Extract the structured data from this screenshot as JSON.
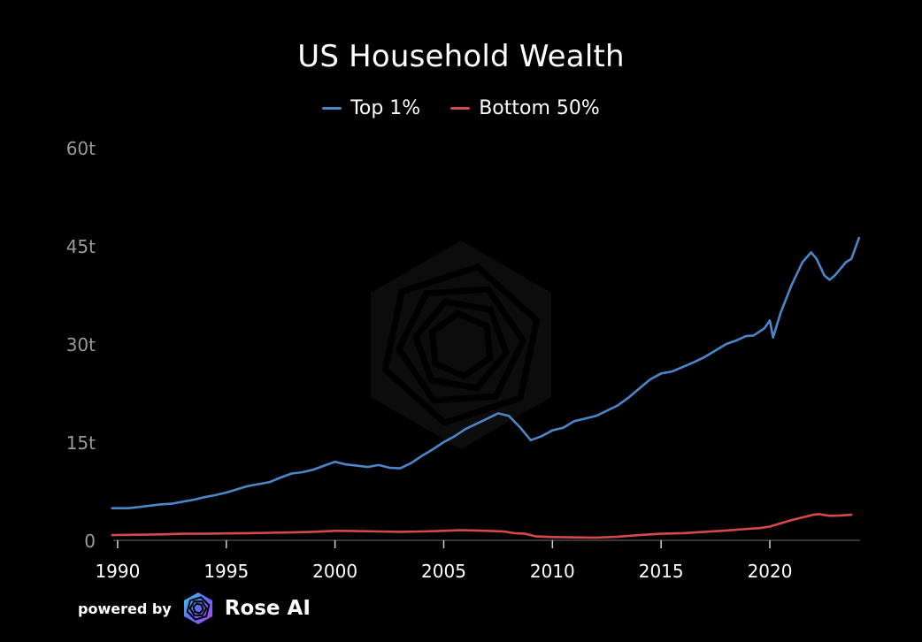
{
  "chart_data": {
    "type": "line",
    "title": "US Household Wealth",
    "xlabel": "",
    "ylabel": "",
    "xlim": [
      1989.8,
      2024.15
    ],
    "ylim": [
      0,
      60
    ],
    "y_ticks": [
      0,
      15,
      30,
      45,
      60
    ],
    "y_tick_labels": [
      "0",
      "15t",
      "30t",
      "45t",
      "60t"
    ],
    "x_ticks": [
      1990,
      1995,
      2000,
      2005,
      2010,
      2015,
      2020
    ],
    "x_tick_labels": [
      "1990",
      "1995",
      "2000",
      "2005",
      "2010",
      "2015",
      "2020"
    ],
    "grid": false,
    "legend_position": "top-center",
    "series": [
      {
        "name": "Top 1%",
        "color": "#4a86c8",
        "x": [
          1989.75,
          1990,
          1990.5,
          1991,
          1991.5,
          1992,
          1992.5,
          1993,
          1993.5,
          1994,
          1994.5,
          1995,
          1995.5,
          1996,
          1996.5,
          1997,
          1997.5,
          1998,
          1998.5,
          1999,
          1999.5,
          2000,
          2000.5,
          2001,
          2001.5,
          2002,
          2002.5,
          2003,
          2003.5,
          2004,
          2004.5,
          2005,
          2005.5,
          2006,
          2006.5,
          2007,
          2007.5,
          2008,
          2008.5,
          2009,
          2009.5,
          2010,
          2010.5,
          2011,
          2011.5,
          2012,
          2012.5,
          2013,
          2013.5,
          2014,
          2014.5,
          2015,
          2015.5,
          2016,
          2016.5,
          2017,
          2017.5,
          2018,
          2018.5,
          2018.9,
          2019.25,
          2019.75,
          2020.0,
          2020.15,
          2020.5,
          2021.0,
          2021.5,
          2021.9,
          2022.15,
          2022.5,
          2022.75,
          2023.0,
          2023.5,
          2023.75,
          2024.1
        ],
        "values": [
          4.9,
          4.9,
          4.9,
          5.1,
          5.3,
          5.5,
          5.6,
          5.9,
          6.2,
          6.6,
          6.9,
          7.3,
          7.8,
          8.3,
          8.6,
          8.9,
          9.6,
          10.2,
          10.4,
          10.8,
          11.4,
          12.0,
          11.6,
          11.4,
          11.2,
          11.5,
          11.1,
          11.0,
          11.8,
          12.9,
          13.9,
          15.0,
          15.9,
          17.0,
          17.8,
          18.6,
          19.4,
          19.0,
          17.3,
          15.3,
          15.9,
          16.8,
          17.2,
          18.2,
          18.6,
          19.0,
          19.8,
          20.6,
          21.8,
          23.2,
          24.6,
          25.5,
          25.8,
          26.5,
          27.2,
          28.0,
          29.0,
          30.0,
          30.6,
          31.2,
          31.3,
          32.4,
          33.6,
          31.0,
          34.8,
          39.0,
          42.5,
          44.0,
          43.0,
          40.5,
          39.8,
          40.5,
          42.5,
          43.0,
          46.2
        ]
      },
      {
        "name": "Bottom 50%",
        "color": "#d44a4a",
        "x": [
          1989.75,
          1991,
          1992,
          1993,
          1994,
          1995,
          1996,
          1997,
          1998,
          1999,
          2000,
          2001,
          2002,
          2003,
          2004,
          2005,
          2005.75,
          2006.5,
          2007,
          2007.75,
          2008.25,
          2008.75,
          2009.25,
          2010,
          2011,
          2012,
          2013,
          2014,
          2015,
          2016,
          2017,
          2018,
          2019,
          2019.5,
          2020,
          2020.5,
          2021,
          2021.5,
          2022,
          2022.25,
          2022.75,
          2023.25,
          2023.75
        ],
        "values": [
          0.8,
          0.85,
          0.9,
          1.0,
          1.0,
          1.05,
          1.1,
          1.15,
          1.2,
          1.3,
          1.45,
          1.4,
          1.35,
          1.3,
          1.35,
          1.45,
          1.55,
          1.5,
          1.45,
          1.35,
          1.1,
          1.0,
          0.6,
          0.5,
          0.45,
          0.4,
          0.55,
          0.8,
          1.0,
          1.1,
          1.3,
          1.5,
          1.75,
          1.85,
          2.1,
          2.6,
          3.1,
          3.5,
          3.9,
          4.0,
          3.75,
          3.8,
          3.9
        ]
      }
    ]
  },
  "watermark": "rose-ai-logo-icon",
  "branding": {
    "powered_by": "powered by",
    "brand": "Rose AI",
    "logo": "rose-ai-logo-icon"
  }
}
